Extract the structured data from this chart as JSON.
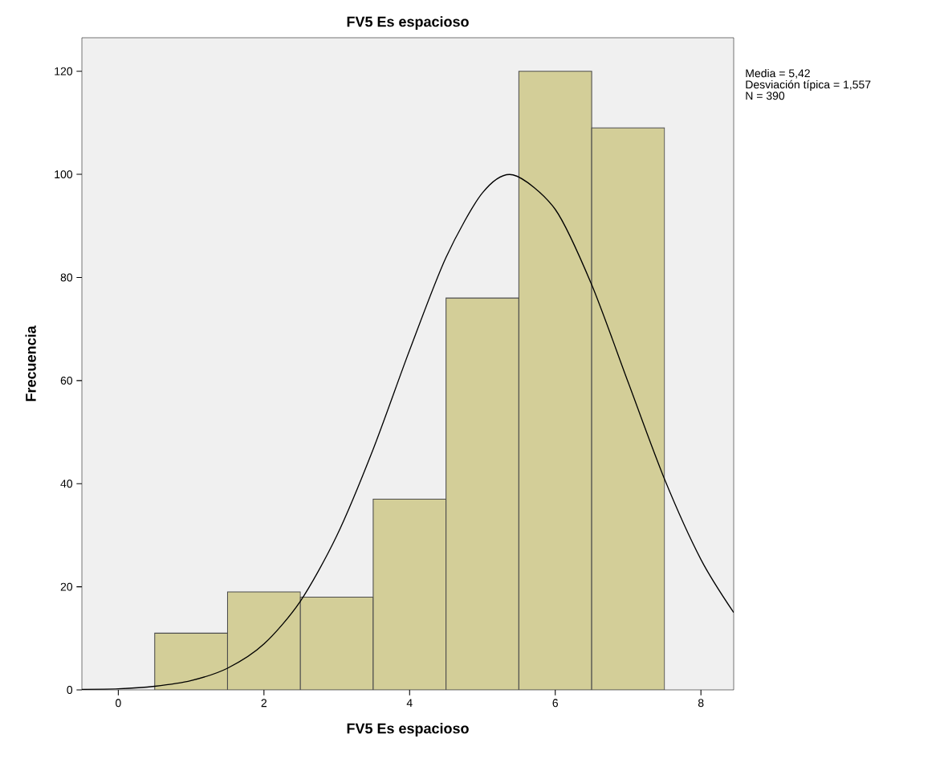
{
  "chart_data": {
    "type": "histogram",
    "title": "FV5 Es espacioso",
    "xlabel": "FV5 Es espacioso",
    "ylabel": "Frecuencia",
    "series": [
      {
        "bins": [
          0.5,
          1.5,
          2.5,
          3.5,
          4.5,
          5.5,
          6.5,
          7.5
        ],
        "values": [
          11,
          19,
          18,
          37,
          76,
          120,
          109
        ],
        "color": "#d3ce98"
      },
      {
        "type": "line",
        "x": [
          -0.5,
          0,
          0.5,
          1,
          1.5,
          2,
          2.5,
          3,
          3.5,
          4,
          4.5,
          5,
          5.42,
          6,
          6.5,
          7,
          7.5,
          8,
          8.45
        ],
        "values": [
          0.1,
          0.2,
          0.7,
          1.8,
          4.2,
          8.9,
          17.2,
          29.9,
          46.7,
          65.9,
          83.9,
          96.4,
          99.9,
          93.2,
          78.6,
          59.7,
          40.9,
          25.3,
          15.0
        ],
        "color": "#000000"
      }
    ],
    "xlim": [
      -0.5,
      8.45
    ],
    "ylim": [
      0,
      126.5
    ],
    "xticks": [
      0,
      2,
      4,
      6,
      8
    ],
    "yticks": [
      0,
      20,
      40,
      60,
      80,
      100,
      120
    ],
    "annotations": [
      "Media = 5,42",
      "Desviación típica = 1,557",
      "N = 390"
    ]
  }
}
